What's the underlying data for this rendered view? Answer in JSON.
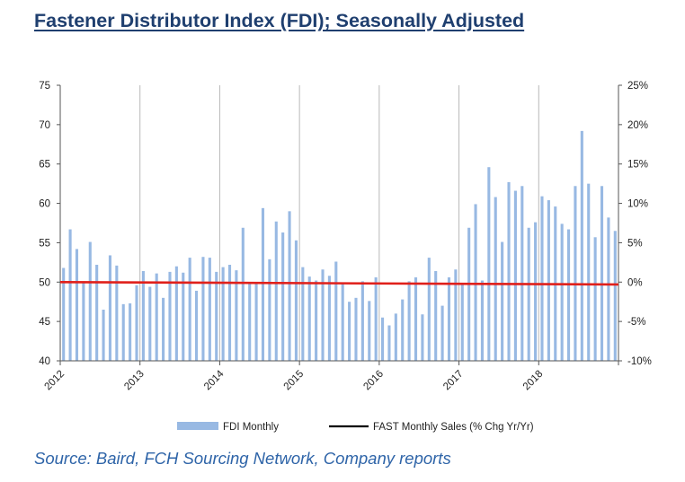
{
  "header": {
    "title": "Fastener Distributor Index (FDI); Seasonally Adjusted"
  },
  "footer": {
    "source": "Source: Baird, FCH Sourcing Network, Company reports"
  },
  "colors": {
    "title": "#1f3f6f",
    "bars": "#98b9e3",
    "sales_line": "#e0201b",
    "legend_line": "#000000",
    "source": "#2e64a8",
    "gridline": "#b8b8b8"
  },
  "chart_data": {
    "type": "bar",
    "title": "",
    "xlabel": "",
    "ylabel": "",
    "ylim": [
      40,
      75
    ],
    "y_ticks": [
      "40",
      "45",
      "50",
      "55",
      "60",
      "65",
      "70",
      "75"
    ],
    "y2lim": [
      -10,
      25
    ],
    "y2_ticks": [
      "-10%",
      "-5%",
      "0%",
      "5%",
      "10%",
      "15%",
      "20%",
      "25%"
    ],
    "x_tick_labels": [
      "2012",
      "2013",
      "2014",
      "2015",
      "2016",
      "2017",
      "2018"
    ],
    "x_range": [
      "2012-01",
      "2018-12"
    ],
    "vertical_gridlines_at_years": true,
    "legend_position": "bottom",
    "series": [
      {
        "name": "FDI Monthly",
        "type": "bar",
        "axis": "left",
        "x": [
          "2012-01",
          "2012-02",
          "2012-03",
          "2012-04",
          "2012-05",
          "2012-06",
          "2012-07",
          "2012-08",
          "2012-09",
          "2012-10",
          "2012-11",
          "2012-12",
          "2013-01",
          "2013-02",
          "2013-03",
          "2013-04",
          "2013-05",
          "2013-06",
          "2013-07",
          "2013-08",
          "2013-09",
          "2013-10",
          "2013-11",
          "2013-12",
          "2014-01",
          "2014-02",
          "2014-03",
          "2014-04",
          "2014-05",
          "2014-06",
          "2014-07",
          "2014-08",
          "2014-09",
          "2014-10",
          "2014-11",
          "2014-12",
          "2015-01",
          "2015-02",
          "2015-03",
          "2015-04",
          "2015-05",
          "2015-06",
          "2015-07",
          "2015-08",
          "2015-09",
          "2015-10",
          "2015-11",
          "2015-12",
          "2016-01",
          "2016-02",
          "2016-03",
          "2016-04",
          "2016-05",
          "2016-06",
          "2016-07",
          "2016-08",
          "2016-09",
          "2016-10",
          "2016-11",
          "2016-12",
          "2017-01",
          "2017-02",
          "2017-03",
          "2017-04",
          "2017-05",
          "2017-06",
          "2017-07",
          "2017-08",
          "2017-09",
          "2017-10",
          "2017-11",
          "2017-12",
          "2018-01",
          "2018-02",
          "2018-03",
          "2018-04",
          "2018-05",
          "2018-06",
          "2018-07",
          "2018-08",
          "2018-09",
          "2018-10",
          "2018-11",
          "2018-12"
        ],
        "values": [
          51.8,
          56.7,
          54.2,
          50.1,
          55.1,
          52.2,
          46.5,
          53.4,
          52.1,
          47.2,
          47.3,
          49.6,
          51.4,
          49.4,
          51.1,
          48.0,
          51.3,
          52.0,
          51.2,
          53.1,
          48.9,
          53.2,
          53.1,
          51.3,
          51.9,
          52.2,
          51.5,
          56.9,
          49.8,
          50.0,
          59.4,
          52.9,
          57.7,
          56.3,
          59.0,
          55.3,
          51.9,
          50.7,
          50.2,
          51.6,
          50.8,
          52.6,
          49.8,
          47.5,
          48.0,
          50.1,
          47.6,
          50.6,
          45.5,
          44.5,
          46.0,
          47.8,
          50.1,
          50.6,
          45.9,
          53.1,
          51.4,
          47.0,
          50.6,
          51.6,
          49.9,
          56.9,
          59.9,
          50.2,
          64.6,
          60.8,
          55.1,
          62.7,
          61.6,
          62.2,
          56.9,
          57.6,
          60.9,
          60.4,
          59.6,
          57.4,
          56.7,
          62.2,
          69.2,
          62.5,
          55.7,
          62.2,
          58.2,
          56.5
        ]
      },
      {
        "name": "FAST Monthly Sales (% Chg Yr/Yr)",
        "type": "line",
        "axis": "right",
        "x": [
          "2012-01",
          "2018-12"
        ],
        "values": [
          0.0,
          -0.3
        ]
      }
    ]
  }
}
